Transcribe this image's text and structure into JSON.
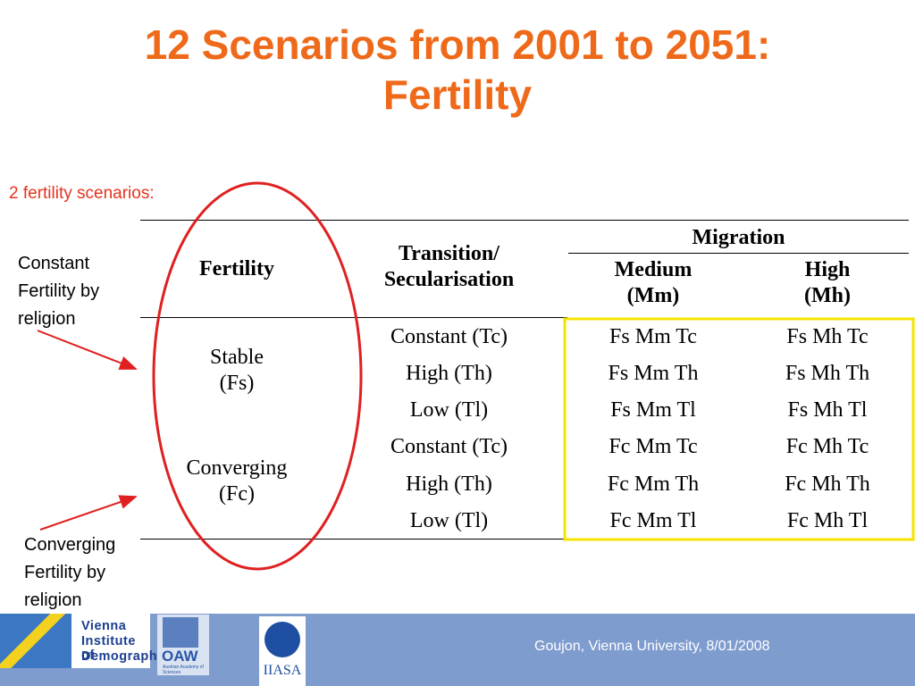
{
  "slide": {
    "title_line1": "12 Scenarios from 2001 to 2051:",
    "title_line2": "Fertility",
    "subtitle": "2 fertility scenarios:"
  },
  "notes": {
    "constant": [
      "Constant",
      "Fertility by",
      "religion"
    ],
    "converging": [
      "Converging",
      "Fertility by",
      "religion"
    ]
  },
  "table": {
    "headers": {
      "fertility": "Fertility",
      "transition_line1": "Transition/",
      "transition_line2": "Secularisation",
      "migration": "Migration",
      "medium_line1": "Medium",
      "medium_line2": "(Mm)",
      "high_line1": "High",
      "high_line2": "(Mh)"
    },
    "groups": [
      {
        "label_line1": "Stable",
        "label_line2": "(Fs)"
      },
      {
        "label_line1": "Converging",
        "label_line2": "(Fc)"
      }
    ],
    "rows": [
      {
        "transition": "Constant (Tc)",
        "medium": "Fs Mm Tc",
        "high": "Fs Mh Tc"
      },
      {
        "transition": "High (Th)",
        "medium": "Fs Mm Th",
        "high": "Fs Mh Th"
      },
      {
        "transition": "Low (Tl)",
        "medium": "Fs Mm Tl",
        "high": "Fs Mh Tl"
      },
      {
        "transition": "Constant (Tc)",
        "medium": "Fc Mm Tc",
        "high": "Fc Mh Tc"
      },
      {
        "transition": "High (Th)",
        "medium": "Fc Mm Th",
        "high": "Fc Mh Th"
      },
      {
        "transition": "Low (Tl)",
        "medium": "Fc Mm Tl",
        "high": "Fc Mh Tl"
      }
    ]
  },
  "footer": {
    "credit": "Goujon,  Vienna University, 8/01/2008",
    "vid_logo": [
      "Vienna",
      "Institute of",
      "Demography"
    ],
    "oaw_logo": "OAW",
    "oaw_small": "Austrian Academy of Sciences",
    "iiasa_logo": "IIASA"
  },
  "colors": {
    "title": "#ee6a1a",
    "subtitle": "#e8321e",
    "annotation": "#e02020",
    "highlight": "#f5e400",
    "footer": "#7f9ccf"
  }
}
